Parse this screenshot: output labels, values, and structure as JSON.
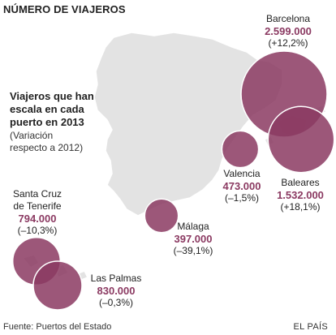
{
  "title": "NÚMERO DE VIAJEROS",
  "legend": {
    "heading": "Viajeros que han\nescala en cada\npuerto en 2013",
    "subheading": "(Variación\nrespecto a 2012)"
  },
  "colors": {
    "bubble": "#8b3a62",
    "bubble_stroke": "#ffffff",
    "land": "#e3e3e3",
    "land_stroke": "#ffffff",
    "value_text": "#8b3a62"
  },
  "ports": [
    {
      "id": "barcelona",
      "city": "Barcelona",
      "value": "2.599.000",
      "change": "(+12,2%)",
      "travelers": 2599000
    },
    {
      "id": "baleares",
      "city": "Baleares",
      "value": "1.532.000",
      "change": "(+18,1%)",
      "travelers": 1532000
    },
    {
      "id": "valencia",
      "city": "Valencia",
      "value": "473.000",
      "change": "(–1,5%)",
      "travelers": 473000
    },
    {
      "id": "malaga",
      "city": "Málaga",
      "value": "397.000",
      "change": "(–39,1%)",
      "travelers": 397000
    },
    {
      "id": "santa-cruz",
      "city": "Santa Cruz\nde Tenerife",
      "value": "794.000",
      "change": "(–10,3%)",
      "travelers": 794000
    },
    {
      "id": "las-palmas",
      "city": "Las Palmas",
      "value": "830.000",
      "change": "(–0,3%)",
      "travelers": 830000
    }
  ],
  "footer": {
    "source": "Fuente: Puertos del Estado",
    "brand": "EL PAÍS"
  }
}
